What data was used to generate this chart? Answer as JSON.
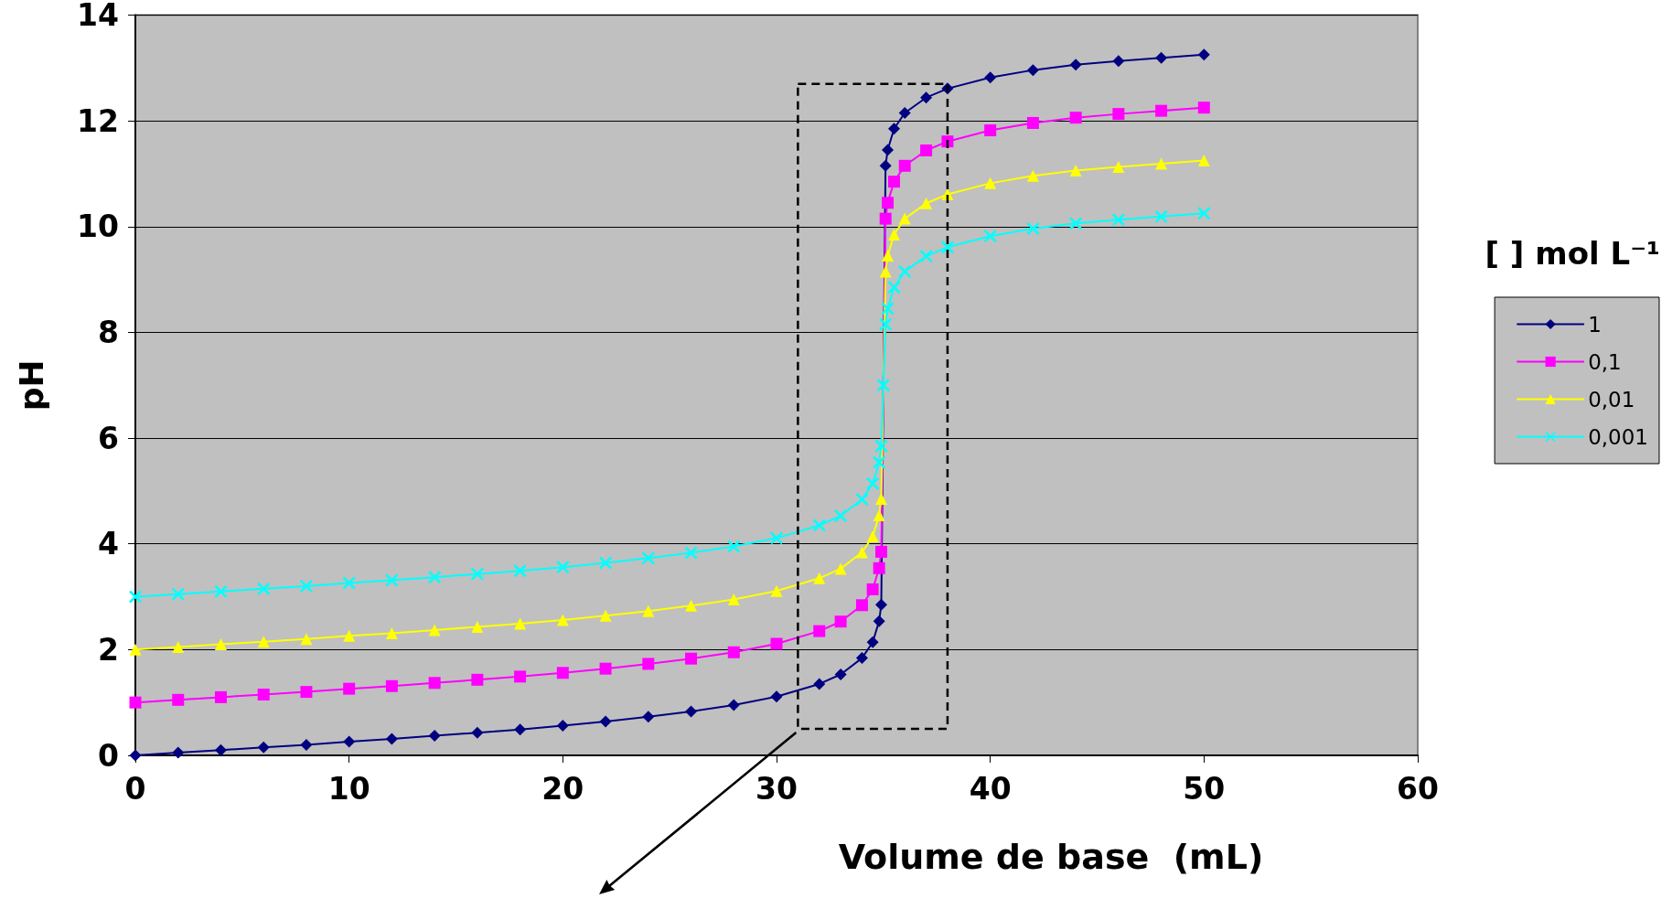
{
  "chart_data": {
    "type": "line",
    "xlabel": "Volume de base  (mL)",
    "ylabel": "pH",
    "legend_title": "[ ] mol L⁻¹",
    "x": [
      0,
      2,
      4,
      6,
      8,
      10,
      12,
      14,
      16,
      18,
      20,
      22,
      24,
      26,
      28,
      30,
      32,
      33,
      34,
      34.5,
      34.8,
      34.9,
      35,
      35.1,
      35.2,
      35.5,
      36,
      37,
      38,
      40,
      42,
      44,
      46,
      48,
      50
    ],
    "series": [
      {
        "name": "1",
        "color": "#000080",
        "marker": "diamond",
        "values": [
          0,
          0.05,
          0.1,
          0.15,
          0.2,
          0.26,
          0.31,
          0.37,
          0.43,
          0.49,
          0.56,
          0.64,
          0.73,
          0.83,
          0.95,
          1.11,
          1.35,
          1.53,
          1.84,
          2.14,
          2.54,
          2.85,
          null,
          11.15,
          11.45,
          11.85,
          12.15,
          12.44,
          12.61,
          12.82,
          12.96,
          13.06,
          13.13,
          13.19,
          13.25
        ]
      },
      {
        "name": "0,1",
        "color": "#ff00ff",
        "marker": "square",
        "values": [
          1,
          1.05,
          1.1,
          1.15,
          1.2,
          1.26,
          1.31,
          1.37,
          1.43,
          1.49,
          1.56,
          1.64,
          1.73,
          1.83,
          1.95,
          2.11,
          2.35,
          2.53,
          2.84,
          3.14,
          3.54,
          3.85,
          null,
          10.15,
          10.45,
          10.85,
          11.15,
          11.44,
          11.61,
          11.82,
          11.96,
          12.06,
          12.13,
          12.19,
          12.25
        ]
      },
      {
        "name": "0,01",
        "color": "#ffff00",
        "marker": "triangle",
        "values": [
          2,
          2.05,
          2.1,
          2.15,
          2.2,
          2.26,
          2.31,
          2.37,
          2.43,
          2.49,
          2.56,
          2.64,
          2.73,
          2.83,
          2.95,
          3.11,
          3.35,
          3.53,
          3.84,
          4.14,
          4.54,
          4.85,
          null,
          9.15,
          9.45,
          9.85,
          10.15,
          10.44,
          10.61,
          10.82,
          10.96,
          11.06,
          11.13,
          11.19,
          11.25
        ]
      },
      {
        "name": "0,001",
        "color": "#00ffff",
        "marker": "cross",
        "values": [
          3,
          3.05,
          3.1,
          3.15,
          3.2,
          3.26,
          3.31,
          3.37,
          3.43,
          3.49,
          3.56,
          3.64,
          3.73,
          3.83,
          3.95,
          4.11,
          4.35,
          4.53,
          4.84,
          5.14,
          5.54,
          5.85,
          7,
          8.15,
          8.45,
          8.85,
          9.15,
          9.44,
          9.61,
          9.82,
          9.96,
          10.06,
          10.13,
          10.19,
          10.25
        ]
      }
    ],
    "xlim": [
      0,
      60
    ],
    "xticks": [
      0,
      10,
      20,
      30,
      40,
      50,
      60
    ],
    "ylim": [
      0,
      14
    ],
    "yticks": [
      0,
      2,
      4,
      6,
      8,
      10,
      12,
      14
    ],
    "grid": "y",
    "legend": "right",
    "line_style": "solid"
  }
}
